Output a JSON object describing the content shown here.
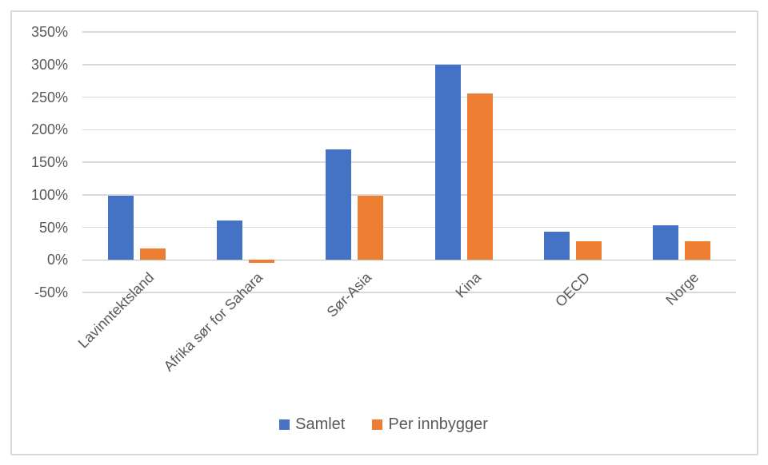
{
  "chart_data": {
    "type": "bar",
    "title": "",
    "xlabel": "",
    "ylabel": "",
    "categories": [
      "Lavinntektsland",
      "Afrika sør for Sahara",
      "Sør-Asia",
      "Kina",
      "OECD",
      "Norge"
    ],
    "series": [
      {
        "name": "Samlet",
        "color": "#4472C4",
        "values": [
          98,
          60,
          170,
          300,
          43,
          53
        ]
      },
      {
        "name": "Per innbygger",
        "color": "#ED7D31",
        "values": [
          17,
          -4,
          99,
          255,
          29,
          29
        ]
      }
    ],
    "ylim": [
      -50,
      350
    ],
    "ytick_step": 50,
    "ytick_suffix": "%",
    "ytick_labels": [
      "350%",
      "300%",
      "250%",
      "200%",
      "150%",
      "100%",
      "50%",
      "0%",
      "-50%"
    ],
    "grid": true,
    "legend_position": "bottom",
    "colors": {
      "axis_text": "#595959",
      "gridline": "#D9D9D9",
      "zero_line": "#BFBFBF",
      "frame_border": "#D9D9D9",
      "background": "#FFFFFF"
    }
  }
}
